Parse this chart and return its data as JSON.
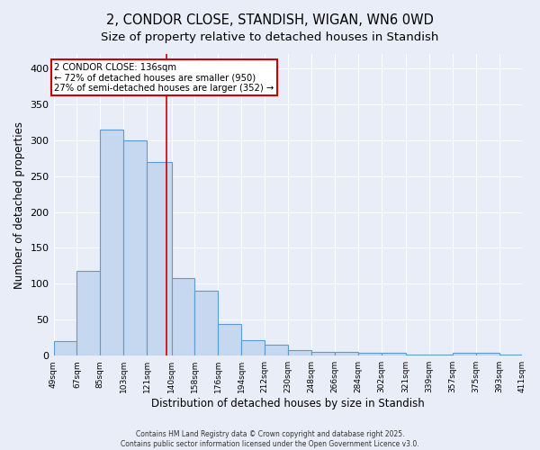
{
  "title": "2, CONDOR CLOSE, STANDISH, WIGAN, WN6 0WD",
  "subtitle": "Size of property relative to detached houses in Standish",
  "xlabel": "Distribution of detached houses by size in Standish",
  "ylabel": "Number of detached properties",
  "bar_values": [
    20,
    118,
    315,
    300,
    270,
    108,
    90,
    44,
    22,
    15,
    8,
    5,
    5,
    4,
    4,
    2,
    2,
    4,
    4,
    2
  ],
  "bin_edges": [
    49,
    67,
    85,
    103,
    121,
    140,
    158,
    176,
    194,
    212,
    230,
    248,
    266,
    284,
    302,
    321,
    339,
    357,
    375,
    393,
    411
  ],
  "tick_labels": [
    "49sqm",
    "67sqm",
    "85sqm",
    "103sqm",
    "121sqm",
    "140sqm",
    "158sqm",
    "176sqm",
    "194sqm",
    "212sqm",
    "230sqm",
    "248sqm",
    "266sqm",
    "284sqm",
    "302sqm",
    "321sqm",
    "339sqm",
    "357sqm",
    "375sqm",
    "393sqm",
    "411sqm"
  ],
  "bar_color": "#c5d8f0",
  "bar_edge_color": "#5b9bd5",
  "property_line_x": 136,
  "property_line_color": "#cc0000",
  "annotation_title": "2 CONDOR CLOSE: 136sqm",
  "annotation_line1": "← 72% of detached houses are smaller (950)",
  "annotation_line2": "27% of semi-detached houses are larger (352) →",
  "annotation_box_color": "#cc0000",
  "background_color": "#e8edf8",
  "grid_color": "#ffffff",
  "footer1": "Contains HM Land Registry data © Crown copyright and database right 2025.",
  "footer2": "Contains public sector information licensed under the Open Government Licence v3.0.",
  "ylim": [
    0,
    420
  ],
  "yticks": [
    0,
    50,
    100,
    150,
    200,
    250,
    300,
    350,
    400
  ],
  "title_fontsize": 10.5,
  "subtitle_fontsize": 9.5,
  "xlabel_fontsize": 8.5,
  "ylabel_fontsize": 8.5
}
